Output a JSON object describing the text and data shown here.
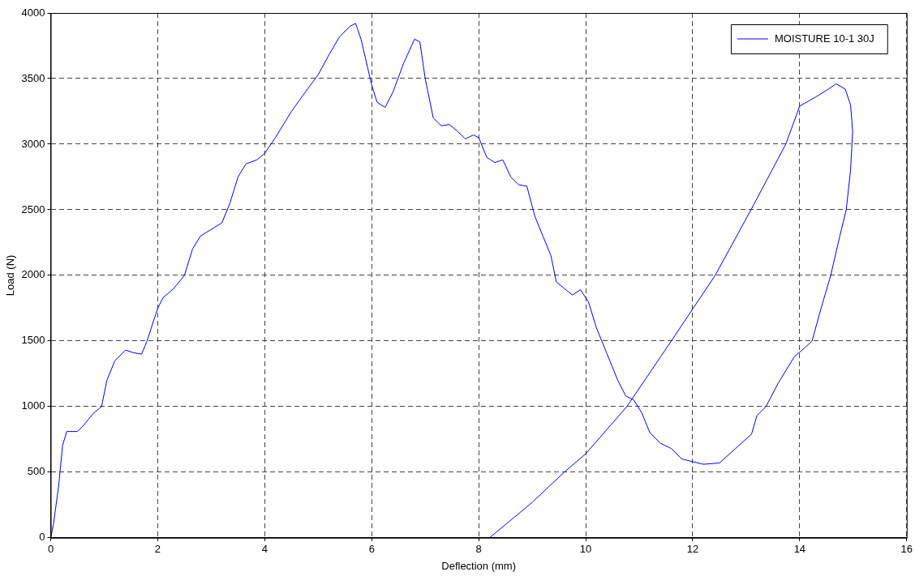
{
  "chart_data": {
    "type": "line",
    "xlabel": "Deflection (mm)",
    "ylabel": "Load (N)",
    "xlim": [
      0,
      16
    ],
    "xticks": [
      0,
      2,
      4,
      6,
      8,
      10,
      12,
      14,
      16
    ],
    "ylim": [
      0,
      4000
    ],
    "yticks": [
      0,
      500,
      1000,
      1500,
      2000,
      2500,
      3000,
      3500,
      4000
    ],
    "grid": true,
    "legend": "top right",
    "marker": "none",
    "line_style": "solid",
    "series": [
      {
        "name": "MOISTURE 10-1 30J",
        "color": "#0000ff",
        "x": [
          0,
          0.05,
          0.15,
          0.22,
          0.3,
          0.5,
          0.6,
          0.8,
          0.95,
          1.05,
          1.2,
          1.4,
          1.55,
          1.7,
          1.8,
          2.0,
          2.1,
          2.3,
          2.5,
          2.65,
          2.8,
          3.0,
          3.2,
          3.35,
          3.5,
          3.65,
          3.85,
          4.0,
          4.2,
          4.5,
          4.8,
          5.0,
          5.2,
          5.4,
          5.6,
          5.7,
          5.8,
          6.0,
          6.1,
          6.25,
          6.4,
          6.6,
          6.8,
          6.9,
          7.0,
          7.15,
          7.3,
          7.45,
          7.6,
          7.75,
          7.9,
          8.0,
          8.15,
          8.3,
          8.45,
          8.6,
          8.75,
          8.9,
          9.05,
          9.2,
          9.35,
          9.45,
          9.6,
          9.75,
          9.9,
          10.05,
          10.2,
          10.4,
          10.6,
          10.75,
          10.9,
          11.05,
          11.2,
          11.4,
          11.6,
          11.8,
          12.0,
          12.2,
          12.5,
          12.8,
          13.1,
          13.2,
          13.37,
          13.6,
          13.9,
          14.1,
          14.23,
          14.4,
          14.58,
          14.75,
          14.87,
          14.95,
          14.99,
          14.95,
          14.85,
          14.68,
          14.5,
          14.3,
          14.0,
          13.74,
          13.09,
          12.42,
          11.6,
          10.77,
          10.0,
          9.6,
          9.0,
          8.5,
          8.2
        ],
        "values": [
          0,
          100,
          400,
          700,
          810,
          810,
          850,
          950,
          1000,
          1200,
          1350,
          1430,
          1410,
          1400,
          1500,
          1750,
          1830,
          1900,
          2000,
          2200,
          2300,
          2350,
          2400,
          2550,
          2750,
          2850,
          2880,
          2930,
          3050,
          3250,
          3420,
          3530,
          3680,
          3820,
          3900,
          3920,
          3800,
          3450,
          3320,
          3280,
          3400,
          3620,
          3800,
          3780,
          3500,
          3200,
          3140,
          3150,
          3100,
          3040,
          3070,
          3050,
          2900,
          2860,
          2880,
          2750,
          2690,
          2680,
          2450,
          2300,
          2150,
          1950,
          1900,
          1850,
          1890,
          1800,
          1600,
          1400,
          1200,
          1080,
          1050,
          950,
          800,
          720,
          680,
          600,
          580,
          560,
          570,
          680,
          790,
          930,
          1000,
          1180,
          1380,
          1450,
          1500,
          1750,
          2000,
          2300,
          2500,
          2800,
          3100,
          3300,
          3420,
          3460,
          3410,
          3360,
          3290,
          3000,
          2500,
          2000,
          1500,
          1000,
          640,
          500,
          270,
          100,
          0
        ]
      }
    ]
  }
}
